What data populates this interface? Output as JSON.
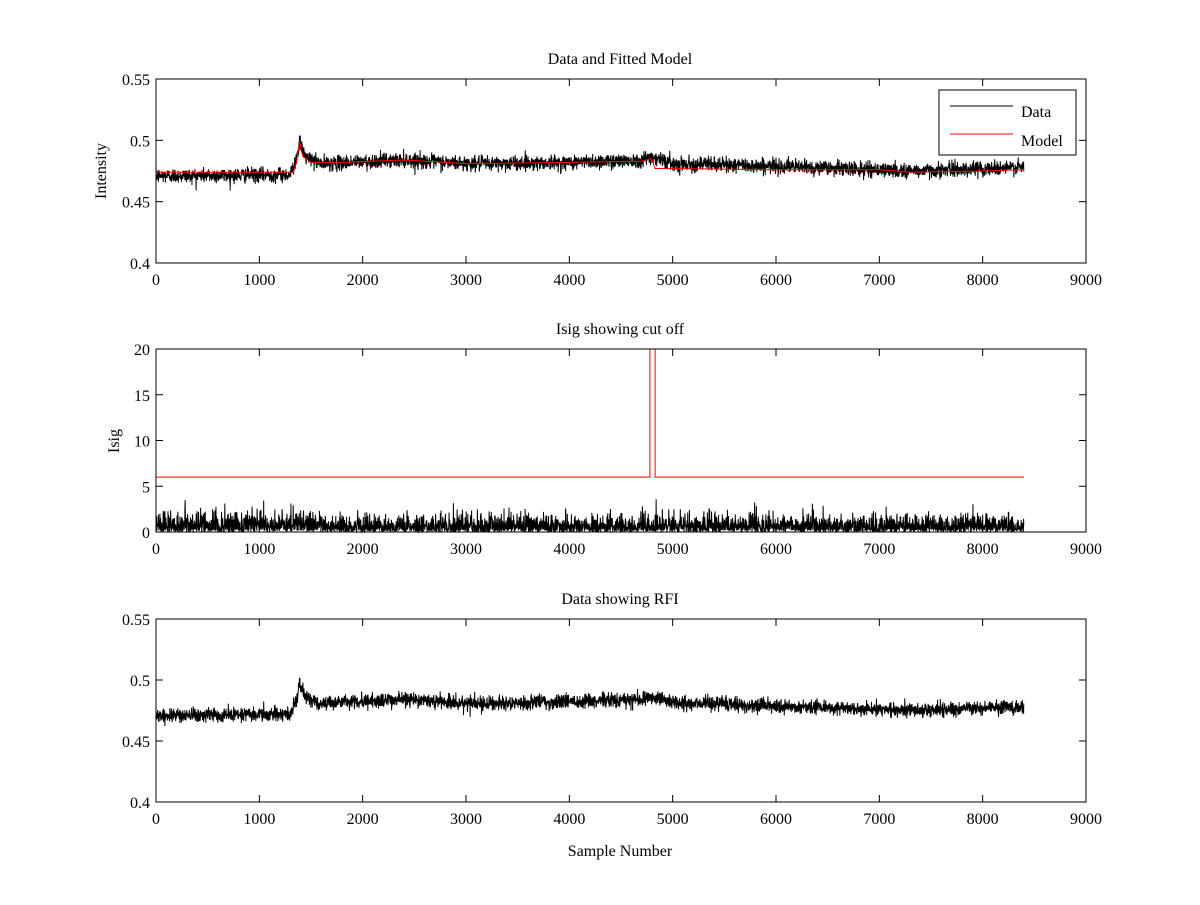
{
  "chart_data": [
    {
      "id": "top",
      "type": "line",
      "title": "Data and Fitted Model",
      "xlabel": "",
      "ylabel": "Intensity",
      "xlim": [
        0,
        9000
      ],
      "ylim": [
        0.4,
        0.55
      ],
      "xticks": [
        0,
        1000,
        2000,
        3000,
        4000,
        5000,
        6000,
        7000,
        8000,
        9000
      ],
      "xtick_labels": [
        "0",
        "1000",
        "2000",
        "3000",
        "4000",
        "5000",
        "6000",
        "7000",
        "8000",
        "9000"
      ],
      "yticks": [
        0.4,
        0.45,
        0.5,
        0.55
      ],
      "ytick_labels": [
        "0.4",
        "0.45",
        "0.5",
        "0.55"
      ],
      "legend": {
        "position": "top-right",
        "entries": [
          {
            "label": "Data",
            "color": "#000000"
          },
          {
            "label": "Model",
            "color": "#ff0000"
          }
        ]
      },
      "series": [
        {
          "name": "Data",
          "color": "#000000",
          "kind": "noisy",
          "n_samples": 8400,
          "noise_amplitude": 0.005,
          "baseline": {
            "x": [
              0,
              1300,
              1360,
              1390,
              1450,
              1600,
              2400,
              3000,
              4000,
              4700,
              4800,
              5000,
              6000,
              7000,
              7300,
              8000,
              8400
            ],
            "y": [
              0.471,
              0.472,
              0.485,
              0.498,
              0.486,
              0.481,
              0.484,
              0.481,
              0.482,
              0.484,
              0.487,
              0.481,
              0.479,
              0.476,
              0.475,
              0.477,
              0.478
            ]
          }
        },
        {
          "name": "Model",
          "color": "#ff0000",
          "kind": "line",
          "x": [
            0,
            1330,
            1360,
            1390,
            1420,
            1500,
            1800,
            2400,
            3000,
            4000,
            4700,
            4790,
            4800,
            4830,
            5000,
            6000,
            7000,
            7300,
            8000,
            8400
          ],
          "y": [
            0.474,
            0.474,
            0.482,
            0.499,
            0.487,
            0.482,
            0.482,
            0.484,
            0.481,
            0.482,
            0.483,
            0.485,
            0.484,
            0.477,
            0.477,
            0.476,
            0.476,
            0.474,
            0.475,
            0.476
          ]
        }
      ]
    },
    {
      "id": "middle",
      "type": "line",
      "title": "Isig showing cut off",
      "xlabel": "",
      "ylabel": "Isig",
      "xlim": [
        0,
        9000
      ],
      "ylim": [
        0,
        20
      ],
      "xticks": [
        0,
        1000,
        2000,
        3000,
        4000,
        5000,
        6000,
        7000,
        8000,
        9000
      ],
      "xtick_labels": [
        "0",
        "1000",
        "2000",
        "3000",
        "4000",
        "5000",
        "6000",
        "7000",
        "8000",
        "9000"
      ],
      "yticks": [
        0,
        5,
        10,
        15,
        20
      ],
      "ytick_labels": [
        "0",
        "5",
        "10",
        "15",
        "20"
      ],
      "series": [
        {
          "name": "Isig",
          "color": "#000000",
          "kind": "abs-noise",
          "n_samples": 8400,
          "scale": 0.9,
          "bumps": [
            {
              "x": 300,
              "height": 3.5
            },
            {
              "x": 4850,
              "height": 3.2
            },
            {
              "x": 5800,
              "height": 3.0
            }
          ]
        },
        {
          "name": "Cut off",
          "color": "#ff0000",
          "kind": "line",
          "x": [
            0,
            4780,
            4780,
            4830,
            4830,
            8400
          ],
          "y": [
            6,
            6,
            20,
            20,
            6,
            6
          ]
        }
      ]
    },
    {
      "id": "bottom",
      "type": "line",
      "title": "Data showing RFI",
      "xlabel": "Sample Number",
      "ylabel": "",
      "xlim": [
        0,
        9000
      ],
      "ylim": [
        0.4,
        0.55
      ],
      "xticks": [
        0,
        1000,
        2000,
        3000,
        4000,
        5000,
        6000,
        7000,
        8000,
        9000
      ],
      "xtick_labels": [
        "0",
        "1000",
        "2000",
        "3000",
        "4000",
        "5000",
        "6000",
        "7000",
        "8000",
        "9000"
      ],
      "yticks": [
        0.4,
        0.45,
        0.5,
        0.55
      ],
      "ytick_labels": [
        "0.4",
        "0.45",
        "0.5",
        "0.55"
      ],
      "series": [
        {
          "name": "Data",
          "color": "#000000",
          "kind": "noisy",
          "n_samples": 8400,
          "noise_amplitude": 0.005,
          "baseline": {
            "x": [
              0,
              1300,
              1360,
              1390,
              1450,
              1600,
              2400,
              3000,
              4000,
              4700,
              4800,
              5000,
              6000,
              7000,
              7300,
              8000,
              8400
            ],
            "y": [
              0.471,
              0.472,
              0.485,
              0.498,
              0.486,
              0.481,
              0.484,
              0.481,
              0.482,
              0.484,
              0.487,
              0.481,
              0.479,
              0.476,
              0.475,
              0.477,
              0.478
            ]
          }
        }
      ]
    }
  ]
}
